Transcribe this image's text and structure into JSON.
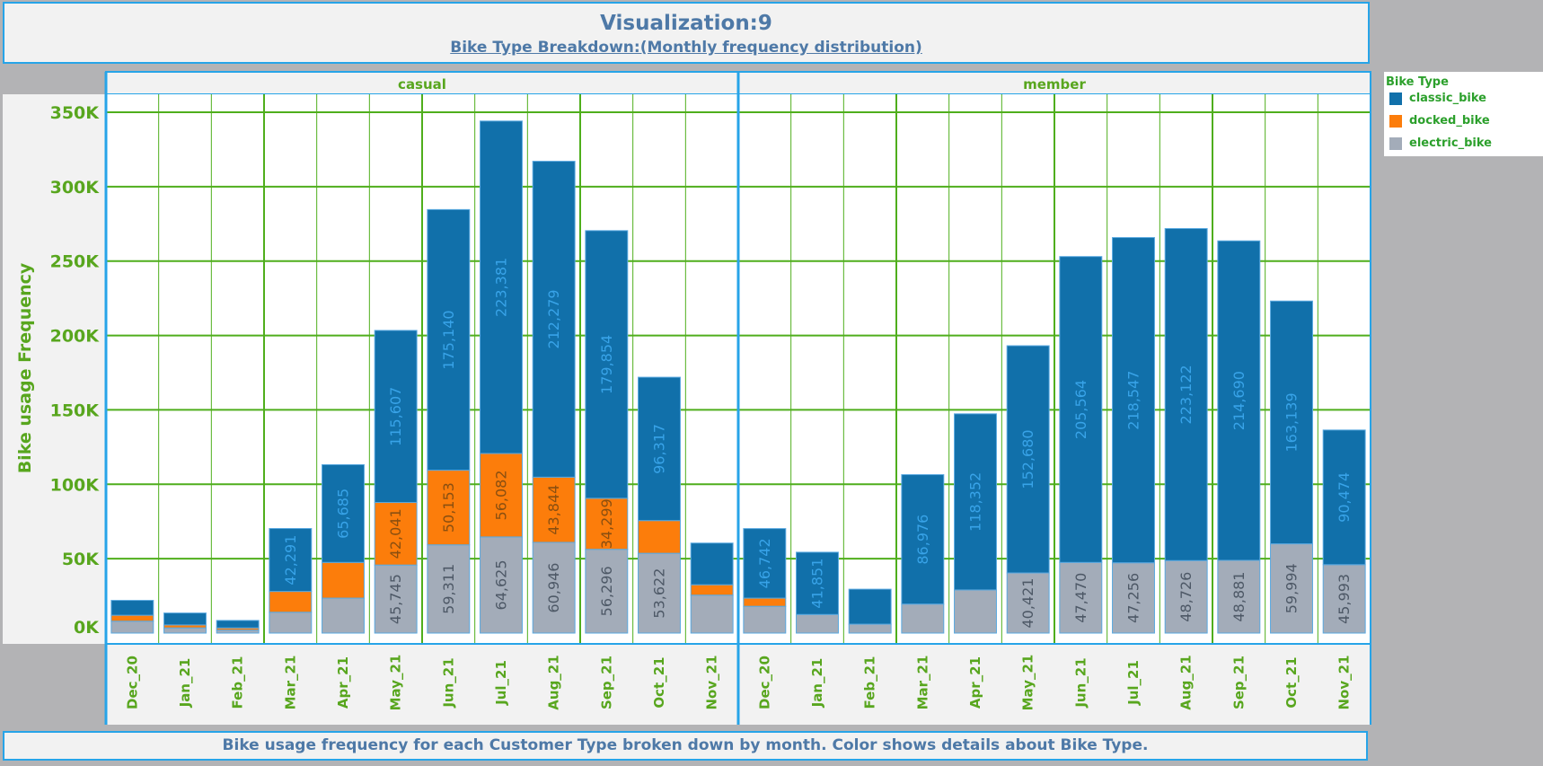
{
  "title": "Visualization:9",
  "subtitle": "Bike Type Breakdown:(Monthly frequency distribution)",
  "caption": "Bike usage frequency for each Customer Type broken down by month.  Color shows details about Bike Type.",
  "legend": {
    "title": "Bike Type",
    "items": [
      {
        "label": "classic_bike",
        "color": "#1170aa"
      },
      {
        "label": "docked_bike",
        "color": "#fc7d0b"
      },
      {
        "label": "electric_bike",
        "color": "#a3acb9"
      }
    ]
  },
  "chart_data": {
    "type": "bar",
    "stacked": true,
    "ylabel": "Bike usage Frequency",
    "ylim": [
      0,
      350000
    ],
    "yticks": [
      "0K",
      "50K",
      "100K",
      "150K",
      "200K",
      "250K",
      "300K",
      "350K"
    ],
    "panels": [
      {
        "name": "casual",
        "categories": [
          "Dec_20",
          "Jan_21",
          "Feb_21",
          "Mar_21",
          "Apr_21",
          "May_21",
          "Jun_21",
          "Jul_21",
          "Aug_21",
          "Sep_21",
          "Oct_21",
          "Nov_21"
        ],
        "series": [
          {
            "name": "electric_bike",
            "values": [
              8000,
              3500,
              2000,
              14000,
              23500,
              45745,
              59311,
              64625,
              60946,
              56296,
              53622,
              25500
            ],
            "labels": [
              null,
              null,
              null,
              null,
              null,
              "45,745",
              "59,311",
              "64,625",
              "60,946",
              "56,296",
              "53,622",
              null
            ]
          },
          {
            "name": "docked_bike",
            "values": [
              4000,
              2000,
              1500,
              14000,
              24000,
              42041,
              50153,
              56082,
              43844,
              34299,
              22000,
              7000
            ],
            "labels": [
              null,
              null,
              null,
              null,
              null,
              "42,041",
              "50,153",
              "56,082",
              "43,844",
              "34,299",
              null,
              null
            ]
          },
          {
            "name": "classic_bike",
            "values": [
              10000,
              8000,
              5000,
              42291,
              65685,
              115607,
              175140,
              223381,
              212279,
              179854,
              96317,
              28000
            ],
            "labels": [
              null,
              null,
              null,
              "42,291",
              "65,685",
              "115,607",
              "175,140",
              "223,381",
              "212,279",
              "179,854",
              "96,317",
              null
            ]
          }
        ]
      },
      {
        "name": "member",
        "categories": [
          "Dec_20",
          "Jan_21",
          "Feb_21",
          "Mar_21",
          "Apr_21",
          "May_21",
          "Jun_21",
          "Jul_21",
          "Aug_21",
          "Sep_21",
          "Oct_21",
          "Nov_21"
        ],
        "series": [
          {
            "name": "electric_bike",
            "values": [
              18000,
              12500,
              6000,
              19500,
              29000,
              40421,
              47470,
              47256,
              48726,
              48881,
              59994,
              45993
            ],
            "labels": [
              null,
              null,
              null,
              null,
              null,
              "40,421",
              "47,470",
              "47,256",
              "48,726",
              "48,881",
              "59,994",
              "45,993"
            ]
          },
          {
            "name": "docked_bike",
            "values": [
              5500,
              0,
              0,
              0,
              0,
              0,
              0,
              0,
              0,
              0,
              0,
              0
            ],
            "labels": [
              null,
              null,
              null,
              null,
              null,
              null,
              null,
              null,
              null,
              null,
              null,
              null
            ]
          },
          {
            "name": "classic_bike",
            "values": [
              46742,
              41851,
              23500,
              86976,
              118352,
              152680,
              205564,
              218547,
              223122,
              214690,
              163139,
              90474
            ],
            "labels": [
              "46,742",
              "41,851",
              null,
              "86,976",
              "118,352",
              "152,680",
              "205,564",
              "218,547",
              "223,122",
              "214,690",
              "163,139",
              "90,474"
            ]
          }
        ]
      }
    ]
  }
}
